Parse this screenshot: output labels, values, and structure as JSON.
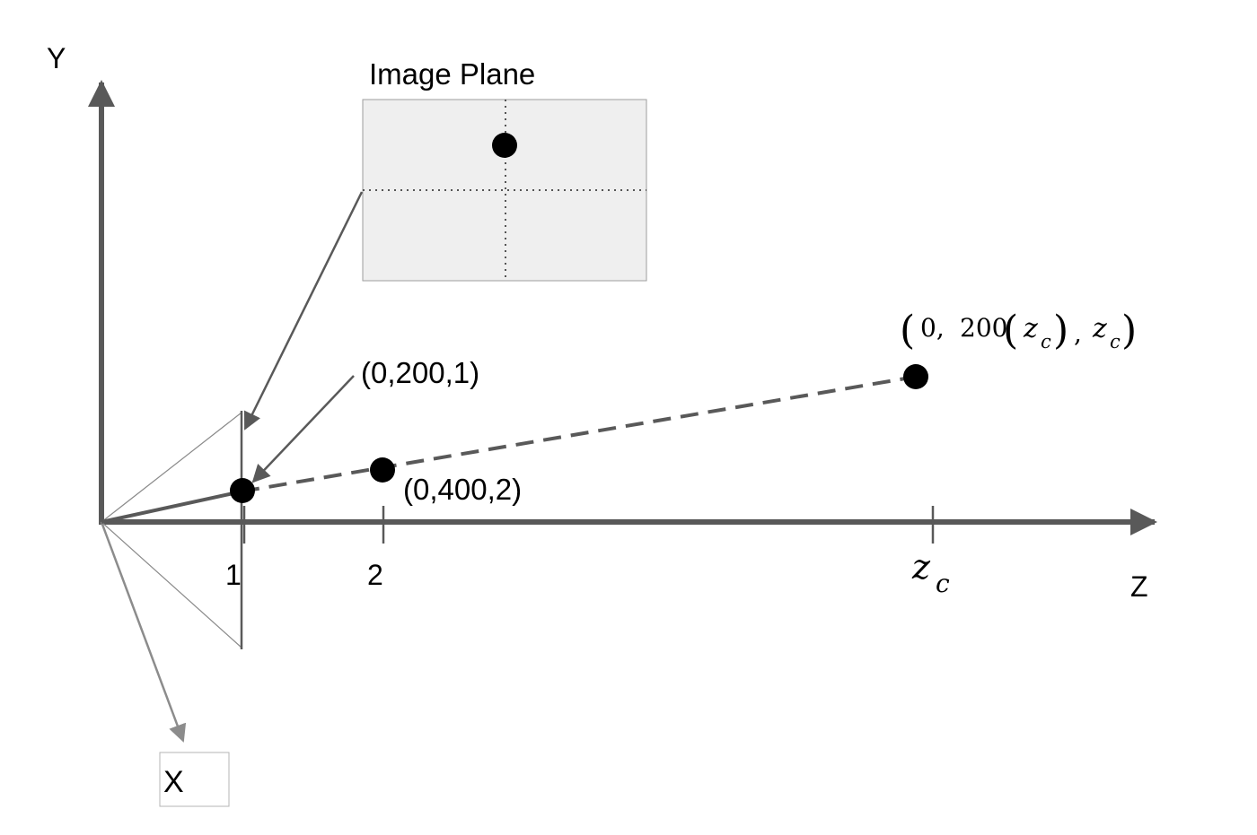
{
  "axes": {
    "y_label": "Y",
    "z_label": "Z",
    "x_label": "X"
  },
  "image_plane": {
    "title": "Image Plane"
  },
  "ticks": {
    "t1": "1",
    "t2": "2",
    "tzc_base": "z",
    "tzc_sub": "c"
  },
  "points": {
    "p1_label": "(0,200,1)",
    "p2_label": "(0,400,2)",
    "pc_label": {
      "open_paren": "(",
      "zero": "0,",
      "coef": "200",
      "inner_open": "(",
      "z1": "z",
      "c1": "c",
      "inner_close": ")",
      "comma": ",",
      "z2": "z",
      "c2": "c",
      "close_paren": ")"
    }
  },
  "colors": {
    "axis": "#595959",
    "dashed_ray": "#595959",
    "plane_fill": "#efefef",
    "plane_border": "#9e9e9e",
    "point": "#000000",
    "x_axis": "#8c8c8c"
  }
}
